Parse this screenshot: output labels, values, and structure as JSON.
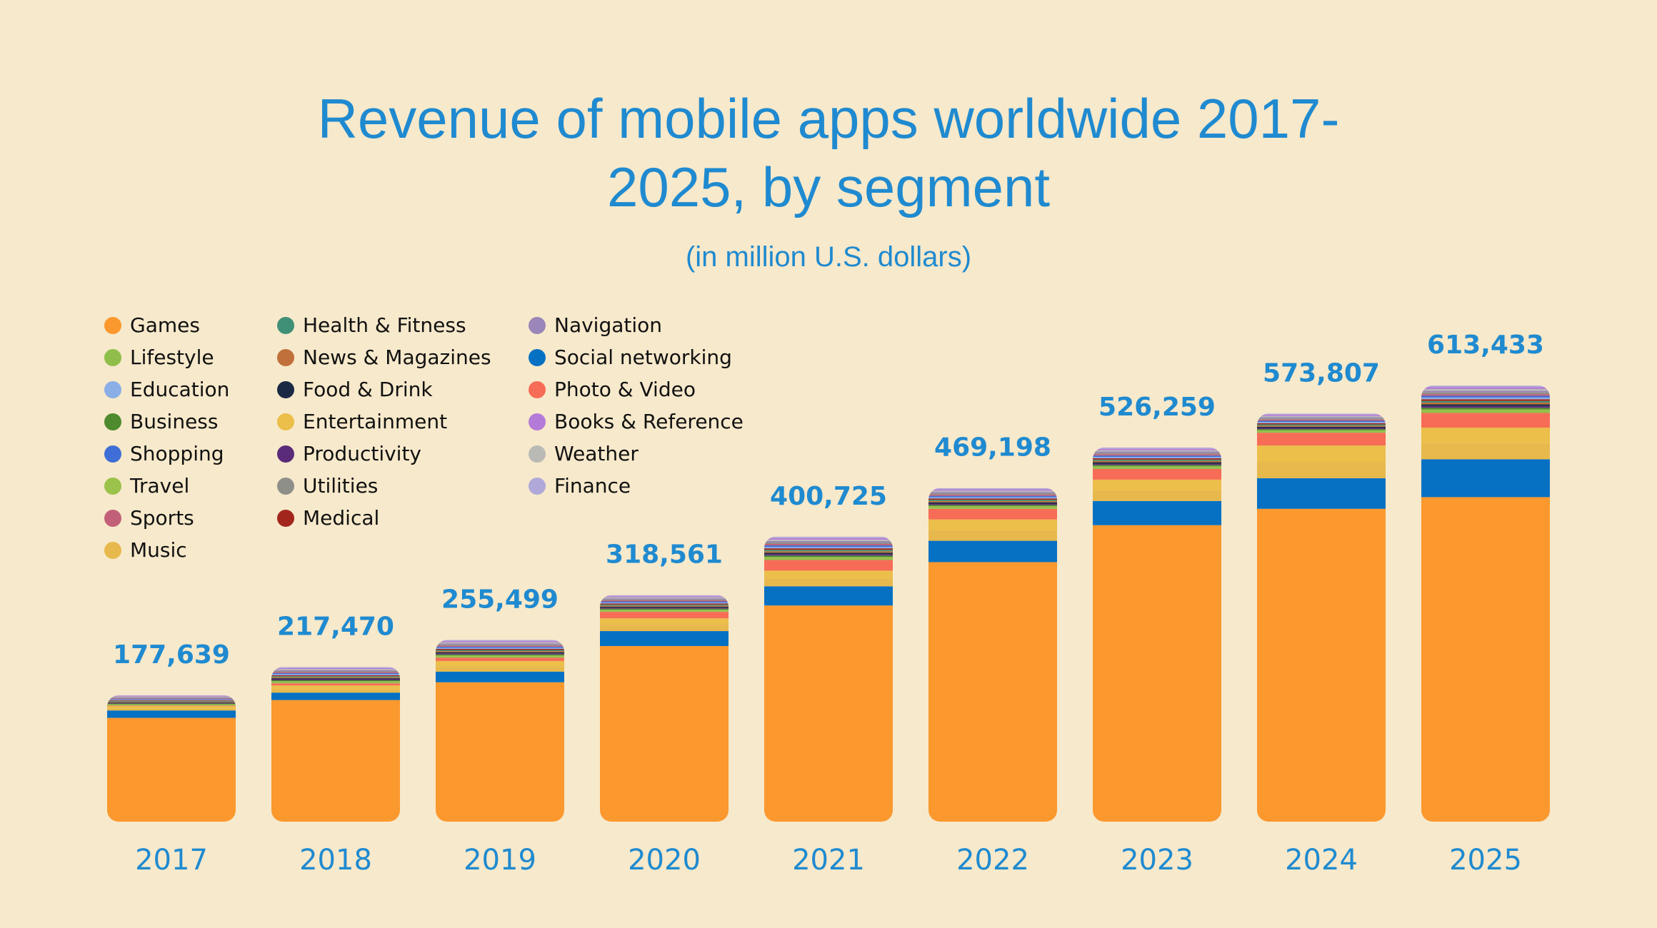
{
  "chart_data": {
    "type": "stacked-bar",
    "title": "Revenue of mobile apps worldwide 2017-2025, by segment",
    "subtitle": "(in million U.S. dollars)",
    "categories": [
      "2017",
      "2018",
      "2019",
      "2020",
      "2021",
      "2022",
      "2023",
      "2024",
      "2025"
    ],
    "totals": {
      "values": [
        177639,
        217470,
        255499,
        318561,
        400725,
        469198,
        526259,
        573807,
        613433
      ],
      "value_labels": [
        "177,639",
        "217,470",
        "255,499",
        "318,561",
        "400,725",
        "469,198",
        "526,259",
        "573,807",
        "613,433"
      ]
    },
    "series": [
      {
        "name": "Games",
        "color": "#fb982e",
        "values": [
          146000,
          171000,
          196000,
          247000,
          304000,
          365000,
          417000,
          440000,
          456400
        ]
      },
      {
        "name": "Lifestyle",
        "color": "#8fbf4a",
        "values": [
          900,
          1440,
          1560,
          1470,
          2050,
          1820,
          1890,
          1680,
          2400
        ]
      },
      {
        "name": "Education",
        "color": "#8aaee6",
        "values": [
          900,
          1440,
          1560,
          1470,
          2050,
          1820,
          1890,
          1680,
          2400
        ]
      },
      {
        "name": "Business",
        "color": "#4e8a2e",
        "values": [
          900,
          1440,
          1560,
          1470,
          2050,
          1820,
          1890,
          1680,
          2400
        ]
      },
      {
        "name": "Shopping",
        "color": "#3f6fd6",
        "values": [
          900,
          1440,
          1560,
          1470,
          2050,
          1820,
          1890,
          1680,
          2400
        ]
      },
      {
        "name": "Travel",
        "color": "#9bc24a",
        "values": [
          900,
          1440,
          1560,
          1470,
          2050,
          1820,
          1890,
          1680,
          2400
        ]
      },
      {
        "name": "Sports",
        "color": "#c2607a",
        "values": [
          900,
          1440,
          1560,
          1470,
          2050,
          1820,
          1890,
          1680,
          2400
        ]
      },
      {
        "name": "Music",
        "color": "#e7b84c",
        "values": [
          3000,
          5000,
          7500,
          9000,
          11000,
          15000,
          15000,
          23000,
          22000
        ]
      },
      {
        "name": "Health & Fitness",
        "color": "#3f9077",
        "values": [
          900,
          1440,
          1560,
          1470,
          2050,
          1820,
          1890,
          1680,
          2400
        ]
      },
      {
        "name": "News & Magazines",
        "color": "#c0703a",
        "values": [
          900,
          1440,
          1560,
          1470,
          2050,
          1820,
          1890,
          1680,
          2400
        ]
      },
      {
        "name": "Food & Drink",
        "color": "#1a2a44",
        "values": [
          900,
          1440,
          1560,
          1470,
          2050,
          1820,
          1890,
          1680,
          2400
        ]
      },
      {
        "name": "Entertainment",
        "color": "#ecbe4a",
        "values": [
          3000,
          5000,
          7500,
          9000,
          11000,
          15000,
          15000,
          23000,
          22500
        ]
      },
      {
        "name": "Productivity",
        "color": "#5a2b78",
        "values": [
          900,
          1440,
          1560,
          1470,
          2050,
          1820,
          1890,
          1680,
          2400
        ]
      },
      {
        "name": "Utilities",
        "color": "#8f8f8a",
        "values": [
          900,
          1440,
          1560,
          1470,
          2050,
          1820,
          1890,
          1680,
          2400
        ]
      },
      {
        "name": "Medical",
        "color": "#a3261d",
        "values": [
          900,
          1440,
          1560,
          1470,
          2050,
          1820,
          1890,
          1680,
          2400
        ]
      },
      {
        "name": "Navigation",
        "color": "#9a86b8",
        "values": [
          900,
          1440,
          1560,
          1470,
          2050,
          1820,
          1890,
          1680,
          2400
        ]
      },
      {
        "name": "Social networking",
        "color": "#0671c3",
        "values": [
          10400,
          10500,
          15000,
          21000,
          27000,
          30000,
          34000,
          43000,
          53300
        ]
      },
      {
        "name": "Photo & Video",
        "color": "#f76c57",
        "values": [
          900,
          3000,
          4500,
          9000,
          15000,
          15000,
          15000,
          18000,
          20700
        ]
      },
      {
        "name": "Books & Reference",
        "color": "#b47ad8",
        "values": [
          900,
          1440,
          1560,
          1470,
          2050,
          1820,
          1890,
          1680,
          2400
        ]
      },
      {
        "name": "Weather",
        "color": "#b9b9b5",
        "values": [
          900,
          1440,
          1560,
          1470,
          2050,
          1820,
          1890,
          1680,
          2400
        ]
      },
      {
        "name": "Finance",
        "color": "#b0a8d8",
        "values": [
          900,
          1440,
          1560,
          1470,
          2050,
          1820,
          1890,
          1680,
          2400
        ]
      }
    ]
  }
}
